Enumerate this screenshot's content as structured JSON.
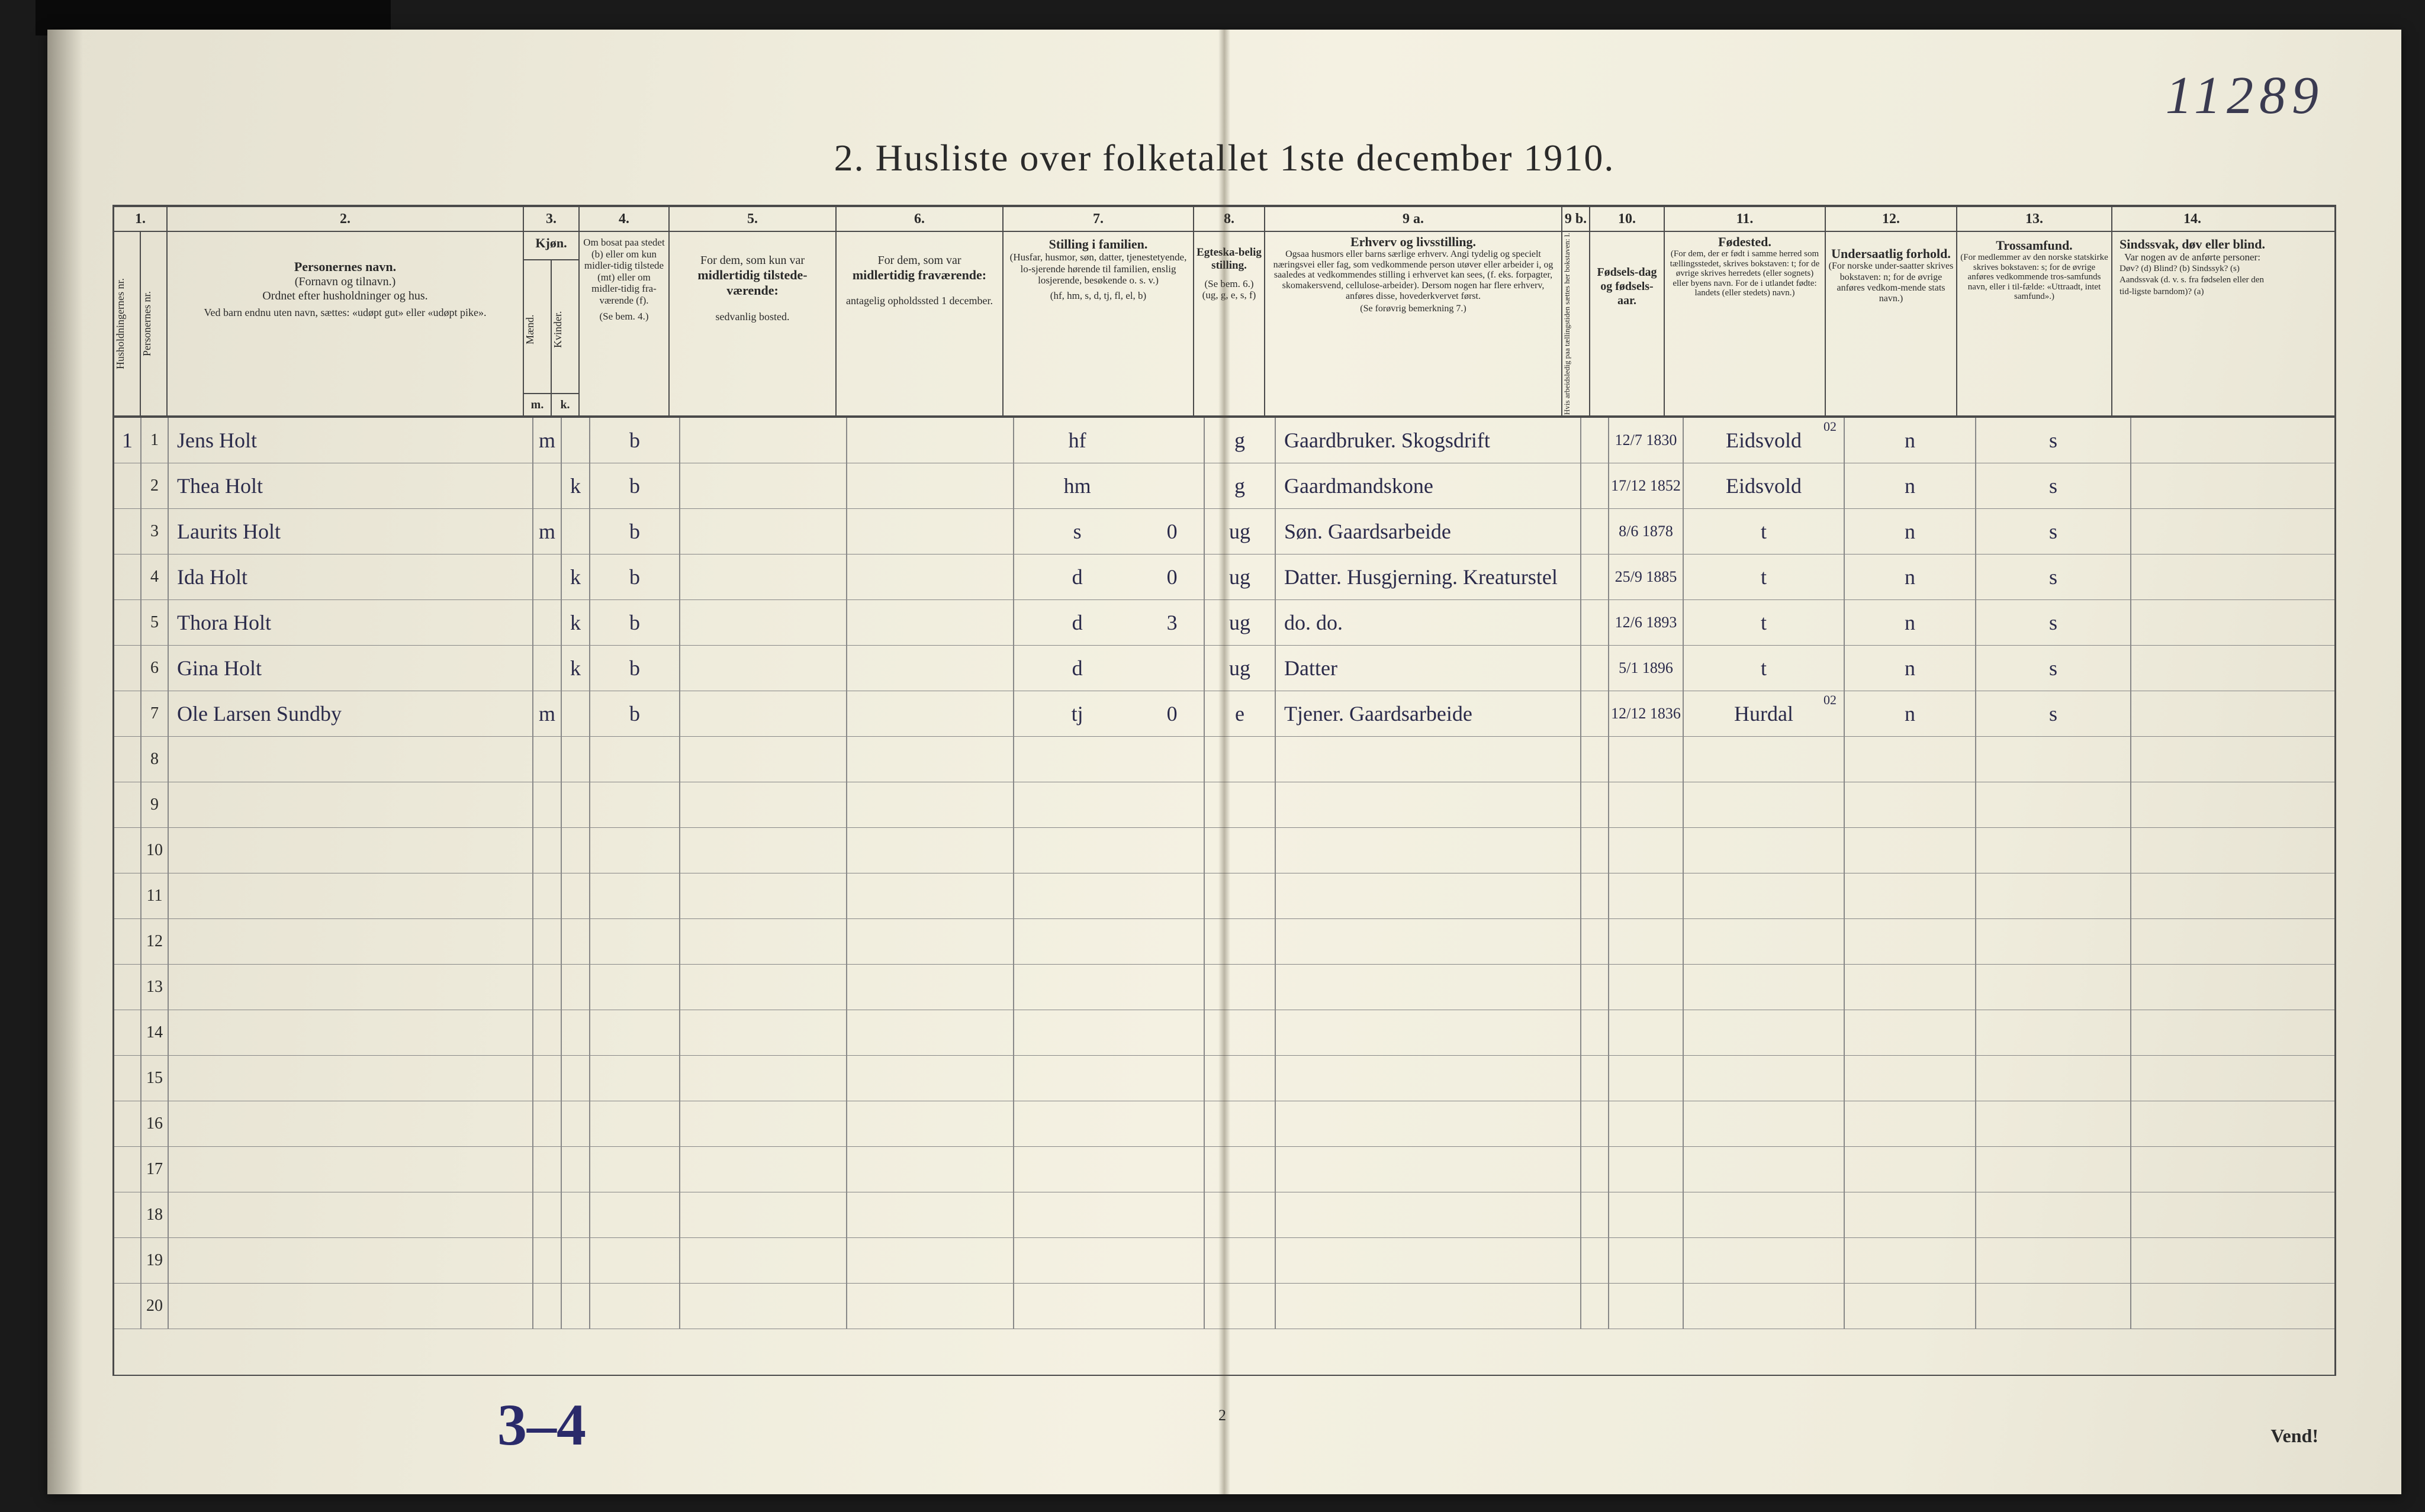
{
  "annotation_topright": "11289",
  "title": "2.  Husliste over folketallet 1ste december 1910.",
  "bottom_annotation": "3–4",
  "page_foot": "2",
  "vend": "Vend!",
  "columns": {
    "c1": "1.",
    "c2": "2.",
    "c3": "3.",
    "c4": "4.",
    "c5": "5.",
    "c6": "6.",
    "c7": "7.",
    "c8": "8.",
    "c9a": "9 a.",
    "c9b": "9 b.",
    "c10": "10.",
    "c11": "11.",
    "c12": "12.",
    "c13": "13.",
    "c14": "14."
  },
  "headers": {
    "c1a": "Husholdningernes nr.",
    "c1b": "Personernes nr.",
    "c2_main": "Personernes navn.",
    "c2_sub1": "(Fornavn og tilnavn.)",
    "c2_sub2": "Ordnet efter husholdninger og hus.",
    "c2_sub3": "Ved barn endnu uten navn, sættes: «udøpt gut» eller «udøpt pike».",
    "c3_main": "Kjøn.",
    "c3_sub": "Mænd.  Kvinder.",
    "c3_mk_m": "m.",
    "c3_mk_k": "k.",
    "c4_main": "Om bosat paa stedet (b) eller om kun midler-tidig tilstede (mt) eller om midler-tidig fra-værende (f).",
    "c4_sub": "(Se bem. 4.)",
    "c5_main1": "For dem, som kun var",
    "c5_main2": "midlertidig tilstede-værende:",
    "c5_sub": "sedvanlig bosted.",
    "c6_main1": "For dem, som var",
    "c6_main2": "midlertidig fraværende:",
    "c6_sub": "antagelig opholdssted 1 december.",
    "c7_main": "Stilling i familien.",
    "c7_sub": "(Husfar, husmor, søn, datter, tjenestetyende, lo-sjerende hørende til familien, enslig losjerende, besøkende o. s. v.)",
    "c7_sub2": "(hf, hm, s, d, tj, fl, el, b)",
    "c8_main": "Egteska-belig stilling.",
    "c8_sub": "(Se bem. 6.) (ug, g, e, s, f)",
    "c9_main": "Erhverv og livsstilling.",
    "c9_sub": "Ogsaa husmors eller barns særlige erhverv. Angi tydelig og specielt næringsvei eller fag, som vedkommende person utøver eller arbeider i, og saaledes at vedkommendes stilling i erhvervet kan sees, (f. eks. forpagter, skomakersvend, cellulose-arbeider). Dersom nogen har flere erhverv, anføres disse, hovederkvervet først.",
    "c9_sub2": "(Se forøvrig bemerkning 7.)",
    "c9b_vert": "Hvis arbeidsledig paa tællingstiden sættes her bokstaven: l.",
    "c10_main": "Fødsels-dag og fødsels-aar.",
    "c11_main": "Fødested.",
    "c11_sub": "(For dem, der er født i samme herred som tællingsstedet, skrives bokstaven: t; for de øvrige skrives herredets (eller sognets) eller byens navn. For de i utlandet fødte: landets (eller stedets) navn.)",
    "c12_main": "Undersaatlig forhold.",
    "c12_sub": "(For norske under-saatter skrives bokstaven: n; for de øvrige anføres vedkom-mende stats navn.)",
    "c13_main": "Trossamfund.",
    "c13_sub": "(For medlemmer av den norske statskirke skrives bokstaven: s; for de øvrige anføres vedkommende tros-samfunds navn, eller i til-fælde: «Uttraadt, intet samfund».)",
    "c14_main": "Sindssvak, døv eller blind.",
    "c14_sub": "Var nogen av de anførte personer:",
    "c14_list": "Døv? (d)  Blind? (b)  Sindssyk? (s)  Aandssvak (d. v. s. fra fødselen eller den tid-ligste barndom)? (a)"
  },
  "rows": [
    {
      "hh": "1",
      "p": "1",
      "name": "Jens Holt",
      "m": "m",
      "k": "",
      "b": "b",
      "c5": "",
      "c6": "",
      "c7": "hf",
      "c7b": "",
      "c8": "g",
      "c9": "Gaardbruker. Skogsdrift",
      "c10": "12/7 1830",
      "c11": "Eidsvold",
      "c11sup": "02",
      "c12": "n",
      "c13": "s",
      "c14": ""
    },
    {
      "hh": "",
      "p": "2",
      "name": "Thea Holt",
      "m": "",
      "k": "k",
      "b": "b",
      "c5": "",
      "c6": "",
      "c7": "hm",
      "c7b": "",
      "c8": "g",
      "c9": "Gaardmandskone",
      "c10": "17/12 1852",
      "c11": "Eidsvold",
      "c11sup": "",
      "c12": "n",
      "c13": "s",
      "c14": ""
    },
    {
      "hh": "",
      "p": "3",
      "name": "Laurits Holt",
      "m": "m",
      "k": "",
      "b": "b",
      "c5": "",
      "c6": "",
      "c7": "s",
      "c7b": "0",
      "c8": "ug",
      "c9": "Søn. Gaardsarbeide",
      "c10": "8/6 1878",
      "c11": "t",
      "c11sup": "",
      "c12": "n",
      "c13": "s",
      "c14": ""
    },
    {
      "hh": "",
      "p": "4",
      "name": "Ida Holt",
      "m": "",
      "k": "k",
      "b": "b",
      "c5": "",
      "c6": "",
      "c7": "d",
      "c7b": "0",
      "c8": "ug",
      "c9": "Datter. Husgjerning. Kreaturstel",
      "c10": "25/9 1885",
      "c11": "t",
      "c11sup": "",
      "c12": "n",
      "c13": "s",
      "c14": ""
    },
    {
      "hh": "",
      "p": "5",
      "name": "Thora Holt",
      "m": "",
      "k": "k",
      "b": "b",
      "c5": "",
      "c6": "",
      "c7": "d",
      "c7b": "3",
      "c8": "ug",
      "c9": "do.      do.",
      "c10": "12/6 1893",
      "c11": "t",
      "c11sup": "",
      "c12": "n",
      "c13": "s",
      "c14": ""
    },
    {
      "hh": "",
      "p": "6",
      "name": "Gina Holt",
      "m": "",
      "k": "k",
      "b": "b",
      "c5": "",
      "c6": "",
      "c7": "d",
      "c7b": "",
      "c8": "ug",
      "c9": "Datter",
      "c10": "5/1 1896",
      "c11": "t",
      "c11sup": "",
      "c12": "n",
      "c13": "s",
      "c14": ""
    },
    {
      "hh": "",
      "p": "7",
      "name": "Ole Larsen Sundby",
      "m": "m",
      "k": "",
      "b": "b",
      "c5": "",
      "c6": "",
      "c7": "tj",
      "c7b": "0",
      "c8": "e",
      "c9": "Tjener. Gaardsarbeide",
      "c10": "12/12 1836",
      "c11": "Hurdal",
      "c11sup": "02",
      "c12": "n",
      "c13": "s",
      "c14": ""
    },
    {
      "hh": "",
      "p": "8",
      "name": "",
      "m": "",
      "k": "",
      "b": "",
      "c5": "",
      "c6": "",
      "c7": "",
      "c7b": "",
      "c8": "",
      "c9": "",
      "c10": "",
      "c11": "",
      "c11sup": "",
      "c12": "",
      "c13": "",
      "c14": ""
    },
    {
      "hh": "",
      "p": "9",
      "name": "",
      "m": "",
      "k": "",
      "b": "",
      "c5": "",
      "c6": "",
      "c7": "",
      "c7b": "",
      "c8": "",
      "c9": "",
      "c10": "",
      "c11": "",
      "c11sup": "",
      "c12": "",
      "c13": "",
      "c14": ""
    },
    {
      "hh": "",
      "p": "10",
      "name": "",
      "m": "",
      "k": "",
      "b": "",
      "c5": "",
      "c6": "",
      "c7": "",
      "c7b": "",
      "c8": "",
      "c9": "",
      "c10": "",
      "c11": "",
      "c11sup": "",
      "c12": "",
      "c13": "",
      "c14": ""
    },
    {
      "hh": "",
      "p": "11",
      "name": "",
      "m": "",
      "k": "",
      "b": "",
      "c5": "",
      "c6": "",
      "c7": "",
      "c7b": "",
      "c8": "",
      "c9": "",
      "c10": "",
      "c11": "",
      "c11sup": "",
      "c12": "",
      "c13": "",
      "c14": ""
    },
    {
      "hh": "",
      "p": "12",
      "name": "",
      "m": "",
      "k": "",
      "b": "",
      "c5": "",
      "c6": "",
      "c7": "",
      "c7b": "",
      "c8": "",
      "c9": "",
      "c10": "",
      "c11": "",
      "c11sup": "",
      "c12": "",
      "c13": "",
      "c14": ""
    },
    {
      "hh": "",
      "p": "13",
      "name": "",
      "m": "",
      "k": "",
      "b": "",
      "c5": "",
      "c6": "",
      "c7": "",
      "c7b": "",
      "c8": "",
      "c9": "",
      "c10": "",
      "c11": "",
      "c11sup": "",
      "c12": "",
      "c13": "",
      "c14": ""
    },
    {
      "hh": "",
      "p": "14",
      "name": "",
      "m": "",
      "k": "",
      "b": "",
      "c5": "",
      "c6": "",
      "c7": "",
      "c7b": "",
      "c8": "",
      "c9": "",
      "c10": "",
      "c11": "",
      "c11sup": "",
      "c12": "",
      "c13": "",
      "c14": ""
    },
    {
      "hh": "",
      "p": "15",
      "name": "",
      "m": "",
      "k": "",
      "b": "",
      "c5": "",
      "c6": "",
      "c7": "",
      "c7b": "",
      "c8": "",
      "c9": "",
      "c10": "",
      "c11": "",
      "c11sup": "",
      "c12": "",
      "c13": "",
      "c14": ""
    },
    {
      "hh": "",
      "p": "16",
      "name": "",
      "m": "",
      "k": "",
      "b": "",
      "c5": "",
      "c6": "",
      "c7": "",
      "c7b": "",
      "c8": "",
      "c9": "",
      "c10": "",
      "c11": "",
      "c11sup": "",
      "c12": "",
      "c13": "",
      "c14": ""
    },
    {
      "hh": "",
      "p": "17",
      "name": "",
      "m": "",
      "k": "",
      "b": "",
      "c5": "",
      "c6": "",
      "c7": "",
      "c7b": "",
      "c8": "",
      "c9": "",
      "c10": "",
      "c11": "",
      "c11sup": "",
      "c12": "",
      "c13": "",
      "c14": ""
    },
    {
      "hh": "",
      "p": "18",
      "name": "",
      "m": "",
      "k": "",
      "b": "",
      "c5": "",
      "c6": "",
      "c7": "",
      "c7b": "",
      "c8": "",
      "c9": "",
      "c10": "",
      "c11": "",
      "c11sup": "",
      "c12": "",
      "c13": "",
      "c14": ""
    },
    {
      "hh": "",
      "p": "19",
      "name": "",
      "m": "",
      "k": "",
      "b": "",
      "c5": "",
      "c6": "",
      "c7": "",
      "c7b": "",
      "c8": "",
      "c9": "",
      "c10": "",
      "c11": "",
      "c11sup": "",
      "c12": "",
      "c13": "",
      "c14": ""
    },
    {
      "hh": "",
      "p": "20",
      "name": "",
      "m": "",
      "k": "",
      "b": "",
      "c5": "",
      "c6": "",
      "c7": "",
      "c7b": "",
      "c8": "",
      "c9": "",
      "c10": "",
      "c11": "",
      "c11sup": "",
      "c12": "",
      "c13": "",
      "c14": ""
    }
  ],
  "colors": {
    "paper": "#efecdc",
    "ink": "#2a2a2a",
    "handwriting": "#2a2a5a",
    "rule": "#4a4a4a"
  }
}
